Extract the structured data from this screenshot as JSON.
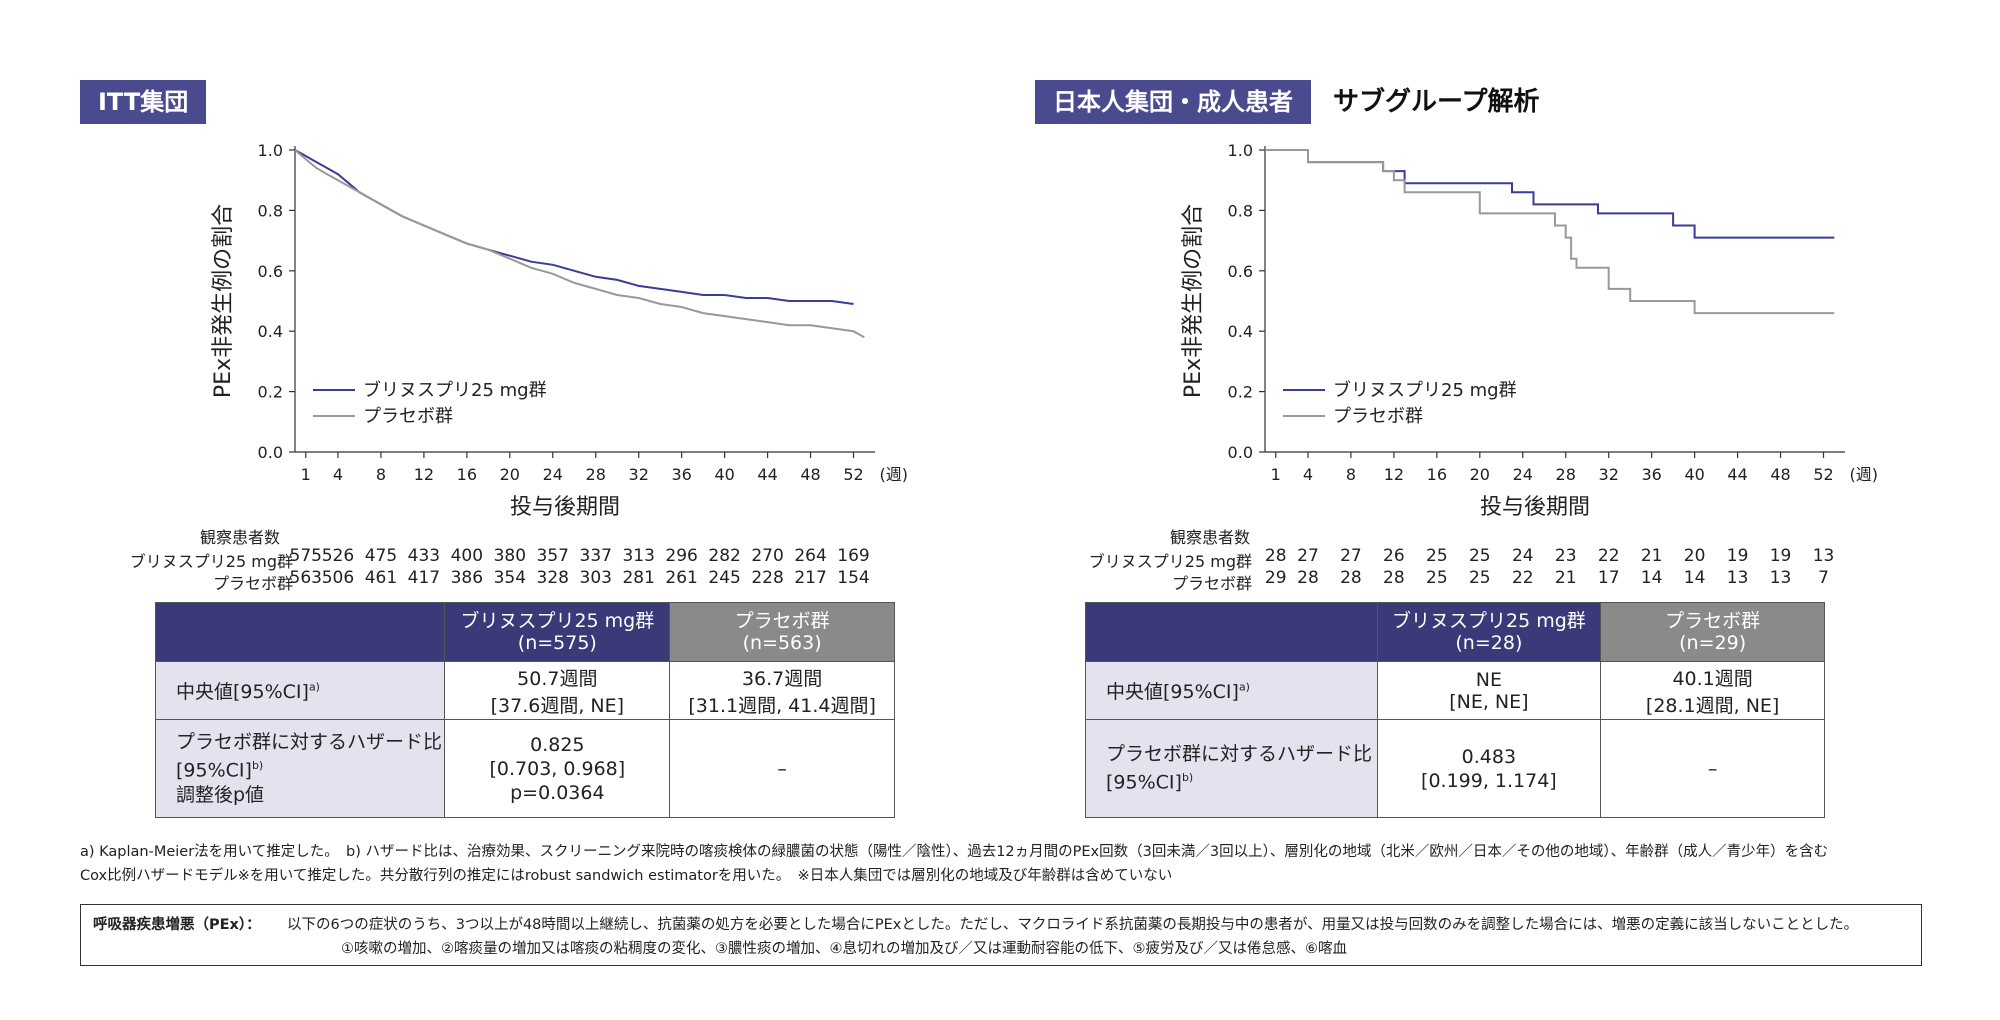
{
  "left": {
    "tag": "ITT集団",
    "subtitle": "",
    "risk": {
      "title": "観察患者数",
      "drug_label": "ブリヌスプリ25 mg群",
      "placebo_label": "プラセボ群",
      "drug": [
        "575",
        "526",
        "475",
        "433",
        "400",
        "380",
        "357",
        "337",
        "313",
        "296",
        "282",
        "270",
        "264",
        "169"
      ],
      "placebo": [
        "563",
        "506",
        "461",
        "417",
        "386",
        "354",
        "328",
        "303",
        "281",
        "261",
        "245",
        "228",
        "217",
        "154"
      ]
    },
    "table": {
      "h_drug_1": "ブリヌスプリ25 mg群",
      "h_drug_2": "(n=575)",
      "h_pla_1": "プラセボ群",
      "h_pla_2": "(n=563)",
      "r1_label": "中央値[95%CI]",
      "r1_sup": "a)",
      "r1_drug_1": "50.7週間",
      "r1_drug_2": "[37.6週間, NE]",
      "r1_pla_1": "36.7週間",
      "r1_pla_2": "[31.1週間, 41.4週間]",
      "r2_label_1": "プラセボ群に対するハザード比",
      "r2_label_2": "[95%CI]",
      "r2_sup": "b)",
      "r2_label_3": "調整後p値",
      "r2_drug_1": "0.825",
      "r2_drug_2": "[0.703, 0.968]",
      "r2_drug_3": "p=0.0364",
      "r2_pla": "–"
    }
  },
  "right": {
    "tag": "日本人集団・成人患者",
    "subtitle": "サブグループ解析",
    "risk": {
      "title": "観察患者数",
      "drug_label": "ブリヌスプリ25 mg群",
      "placebo_label": "プラセボ群",
      "drug": [
        "28",
        "27",
        "27",
        "26",
        "25",
        "25",
        "24",
        "23",
        "22",
        "21",
        "20",
        "19",
        "19",
        "13"
      ],
      "placebo": [
        "29",
        "28",
        "28",
        "28",
        "25",
        "25",
        "22",
        "21",
        "17",
        "14",
        "14",
        "13",
        "13",
        "7"
      ]
    },
    "table": {
      "h_drug_1": "ブリヌスプリ25 mg群",
      "h_drug_2": "(n=28)",
      "h_pla_1": "プラセボ群",
      "h_pla_2": "(n=29)",
      "r1_label": "中央値[95%CI]",
      "r1_sup": "a)",
      "r1_drug_1": "NE",
      "r1_drug_2": "[NE, NE]",
      "r1_pla_1": "40.1週間",
      "r1_pla_2": "[28.1週間, NE]",
      "r2_label_1": "プラセボ群に対するハザード比",
      "r2_label_2": "[95%CI]",
      "r2_sup": "b)",
      "r2_drug_1": "0.483",
      "r2_drug_2": "[0.199, 1.174]",
      "r2_pla": "–"
    }
  },
  "footnotes": {
    "line1": "a) Kaplan-Meier法を用いて推定した。　b) ハザード比は、治療効果、スクリーニング来院時の喀痰検体の緑膿菌の状態（陽性／陰性）、過去12ヵ月間のPEx回数（3回未満／3回以上）、層別化の地域（北米／欧州／日本／その他の地域）、年齢群（成人／青少年）を含む",
    "line2": "Cox比例ハザードモデル※を用いて推定した。共分散行列の推定にはrobust sandwich estimatorを用いた。　※日本人集団では層別化の地域及び年齢群は含めていない"
  },
  "definition": {
    "label": "呼吸器疾患増悪（PEx）：",
    "line1": "以下の6つの症状のうち、3つ以上が48時間以上継続し、抗菌薬の処方を必要とした場合にPExとした。ただし、マクロライド系抗菌薬の長期投与中の患者が、用量又は投与回数のみを調整した場合には、増悪の定義に該当しないこととした。",
    "line2": "①咳嗽の増加、②喀痰量の増加又は喀痰の粘稠度の変化、③膿性痰の増加、④息切れの増加及び／又は運動耐容能の低下、⑤疲労及び／又は倦怠感、⑥喀血"
  },
  "colors": {
    "drug": "#3b3b9a",
    "placebo": "#999999",
    "header": "#3a3a78",
    "tag": "#4a4a8e"
  },
  "chart_data": [
    {
      "type": "line",
      "title": "ITT集団",
      "xlabel": "投与後期間",
      "x_unit": "(週)",
      "ylabel": "PEx非発生例の割合",
      "xlim": [
        0,
        54
      ],
      "ylim": [
        0,
        1.0
      ],
      "xticks": [
        1,
        4,
        8,
        12,
        16,
        20,
        24,
        28,
        32,
        36,
        40,
        44,
        48,
        52
      ],
      "yticks": [
        "0.0",
        "0.2",
        "0.4",
        "0.6",
        "0.8",
        "1.0"
      ],
      "legend": "bottom-left",
      "series": [
        {
          "name": "ブリヌスプリ25 mg群",
          "color": "#3b3b9a",
          "x": [
            0,
            1,
            2,
            3,
            4,
            5,
            6,
            8,
            10,
            12,
            14,
            16,
            18,
            20,
            22,
            24,
            26,
            28,
            30,
            32,
            34,
            36,
            38,
            40,
            42,
            44,
            46,
            48,
            50,
            52
          ],
          "y": [
            1.0,
            0.98,
            0.96,
            0.94,
            0.92,
            0.89,
            0.86,
            0.82,
            0.78,
            0.75,
            0.72,
            0.69,
            0.67,
            0.65,
            0.63,
            0.62,
            0.6,
            0.58,
            0.57,
            0.55,
            0.54,
            0.53,
            0.52,
            0.52,
            0.51,
            0.51,
            0.5,
            0.5,
            0.5,
            0.49
          ]
        },
        {
          "name": "プラセボ群",
          "color": "#999999",
          "x": [
            0,
            1,
            2,
            3,
            4,
            5,
            6,
            8,
            10,
            12,
            14,
            16,
            18,
            20,
            22,
            24,
            26,
            28,
            30,
            32,
            34,
            36,
            38,
            40,
            42,
            44,
            46,
            48,
            50,
            52,
            53
          ],
          "y": [
            1.0,
            0.97,
            0.94,
            0.92,
            0.9,
            0.88,
            0.86,
            0.82,
            0.78,
            0.75,
            0.72,
            0.69,
            0.67,
            0.64,
            0.61,
            0.59,
            0.56,
            0.54,
            0.52,
            0.51,
            0.49,
            0.48,
            0.46,
            0.45,
            0.44,
            0.43,
            0.42,
            0.42,
            0.41,
            0.4,
            0.38
          ]
        }
      ]
    },
    {
      "type": "line",
      "title": "日本人集団・成人患者",
      "xlabel": "投与後期間",
      "x_unit": "(週)",
      "ylabel": "PEx非発生例の割合",
      "xlim": [
        0,
        54
      ],
      "ylim": [
        0,
        1.0
      ],
      "xticks": [
        1,
        4,
        8,
        12,
        16,
        20,
        24,
        28,
        32,
        36,
        40,
        44,
        48,
        52
      ],
      "yticks": [
        "0.0",
        "0.2",
        "0.4",
        "0.6",
        "0.8",
        "1.0"
      ],
      "legend": "bottom-left",
      "series": [
        {
          "name": "ブリヌスプリ25 mg群",
          "color": "#3b3b9a",
          "x": [
            0,
            4,
            4,
            11,
            11,
            13,
            13,
            23,
            23,
            25,
            25,
            31,
            31,
            38,
            38,
            40,
            40,
            53
          ],
          "y": [
            1.0,
            1.0,
            0.96,
            0.96,
            0.93,
            0.93,
            0.89,
            0.89,
            0.86,
            0.86,
            0.82,
            0.82,
            0.79,
            0.79,
            0.75,
            0.75,
            0.71,
            0.71
          ]
        },
        {
          "name": "プラセボ群",
          "color": "#999999",
          "x": [
            0,
            4,
            4,
            11,
            11,
            12,
            12,
            13,
            13,
            20,
            20,
            27,
            27,
            28,
            28,
            28.5,
            28.5,
            29,
            29,
            32,
            32,
            34,
            34,
            40,
            40,
            53
          ],
          "y": [
            1.0,
            1.0,
            0.96,
            0.96,
            0.93,
            0.93,
            0.9,
            0.9,
            0.86,
            0.86,
            0.79,
            0.79,
            0.75,
            0.75,
            0.71,
            0.71,
            0.64,
            0.64,
            0.61,
            0.61,
            0.54,
            0.54,
            0.5,
            0.5,
            0.46,
            0.46
          ]
        }
      ]
    }
  ]
}
